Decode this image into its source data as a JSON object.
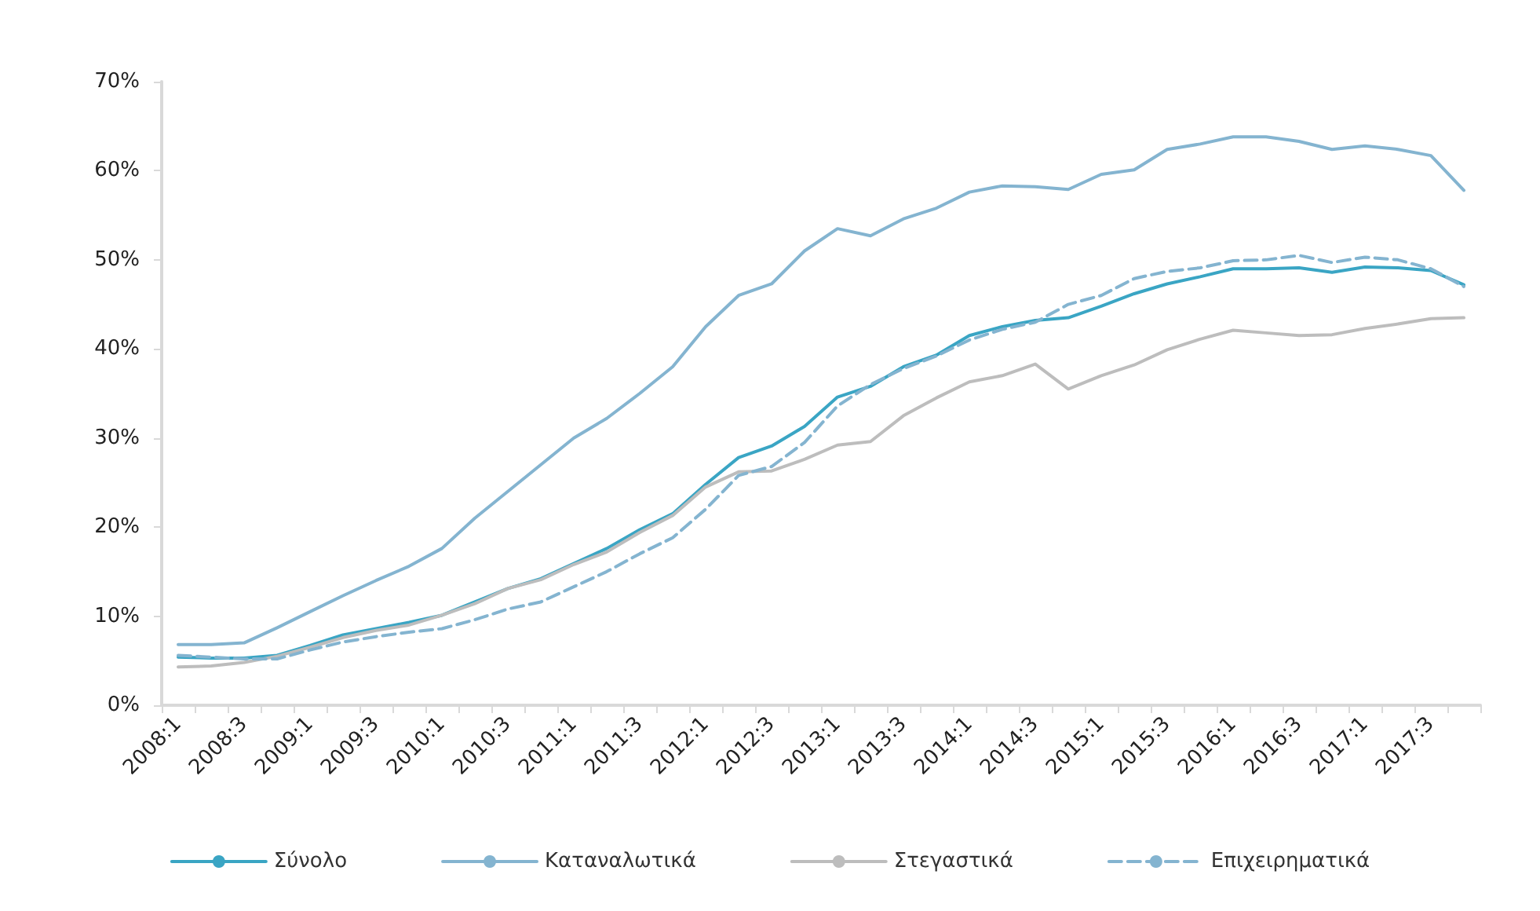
{
  "chart_data": {
    "type": "line",
    "categories": [
      "2008:1",
      null,
      "2008:3",
      null,
      "2009:1",
      null,
      "2009:3",
      null,
      "2010:1",
      null,
      "2010:3",
      null,
      "2011:1",
      null,
      "2011:3",
      null,
      "2012:1",
      null,
      "2012:3",
      null,
      "2013:1",
      null,
      "2013:3",
      null,
      "2014:1",
      null,
      "2014:3",
      null,
      "2015:1",
      null,
      "2015:3",
      null,
      "2016:1",
      null,
      "2016:3",
      null,
      "2017:1",
      null,
      "2017:3",
      null
    ],
    "series": [
      {
        "name": "Σύνολο",
        "color": "#3aa5c4",
        "line_style": "solid",
        "values": [
          5.4,
          5.3,
          5.3,
          5.6,
          6.7,
          7.9,
          8.6,
          9.3,
          10.1,
          11.6,
          13.1,
          14.2,
          15.9,
          17.6,
          19.7,
          21.5,
          24.8,
          27.8,
          29.1,
          31.3,
          34.6,
          35.8,
          38.0,
          39.3,
          41.5,
          42.5,
          43.2,
          43.5,
          44.8,
          46.2,
          47.3,
          48.1,
          49.0,
          49.0,
          49.1,
          48.6,
          49.2,
          49.1,
          48.8,
          47.2
        ]
      },
      {
        "name": "Καταναλωτικά",
        "color": "#84b4d0",
        "line_style": "solid",
        "values": [
          6.8,
          6.8,
          7.0,
          8.7,
          10.5,
          12.3,
          14.0,
          15.6,
          17.6,
          21.0,
          24.0,
          27.0,
          30.0,
          32.2,
          35.0,
          38.0,
          42.5,
          46.0,
          47.3,
          51.0,
          53.5,
          52.7,
          54.6,
          55.8,
          57.6,
          58.3,
          58.2,
          57.9,
          59.6,
          60.1,
          62.4,
          63.0,
          63.8,
          63.8,
          63.3,
          62.4,
          62.8,
          62.4,
          61.7,
          57.8
        ]
      },
      {
        "name": "Στεγαστικά",
        "color": "#bdbdbd",
        "line_style": "solid",
        "values": [
          4.3,
          4.4,
          4.8,
          5.5,
          6.5,
          7.6,
          8.4,
          9.0,
          10.1,
          11.4,
          13.1,
          14.1,
          15.8,
          17.2,
          19.4,
          21.3,
          24.5,
          26.2,
          26.3,
          27.6,
          29.2,
          29.6,
          32.5,
          34.5,
          36.3,
          37.0,
          38.3,
          35.5,
          37.0,
          38.2,
          39.9,
          41.1,
          42.1,
          41.8,
          41.5,
          41.6,
          42.3,
          42.8,
          43.4,
          43.5
        ]
      },
      {
        "name": "Επιχειρηματικά",
        "color": "#84b4d0",
        "line_style": "dashed",
        "values": [
          5.6,
          5.4,
          5.2,
          5.2,
          6.2,
          7.1,
          7.7,
          8.2,
          8.6,
          9.6,
          10.8,
          11.6,
          13.3,
          15.0,
          17.0,
          18.8,
          22.0,
          25.8,
          26.8,
          29.5,
          33.6,
          36.0,
          37.8,
          39.2,
          41.0,
          42.2,
          43.0,
          45.0,
          46.0,
          47.9,
          48.7,
          49.1,
          49.9,
          50.0,
          50.5,
          49.7,
          50.3,
          50.0,
          49.0,
          47.0
        ]
      }
    ],
    "ylim": [
      0,
      70
    ],
    "yticks": [
      {
        "value": 0,
        "label": "0%"
      },
      {
        "value": 10,
        "label": "10%"
      },
      {
        "value": 20,
        "label": "20%"
      },
      {
        "value": 30,
        "label": "30%"
      },
      {
        "value": 40,
        "label": "40%"
      },
      {
        "value": 50,
        "label": "50%"
      },
      {
        "value": 60,
        "label": "60%"
      },
      {
        "value": 70,
        "label": "70%"
      }
    ],
    "grid": false,
    "legend": "bottom",
    "marker": "none"
  }
}
